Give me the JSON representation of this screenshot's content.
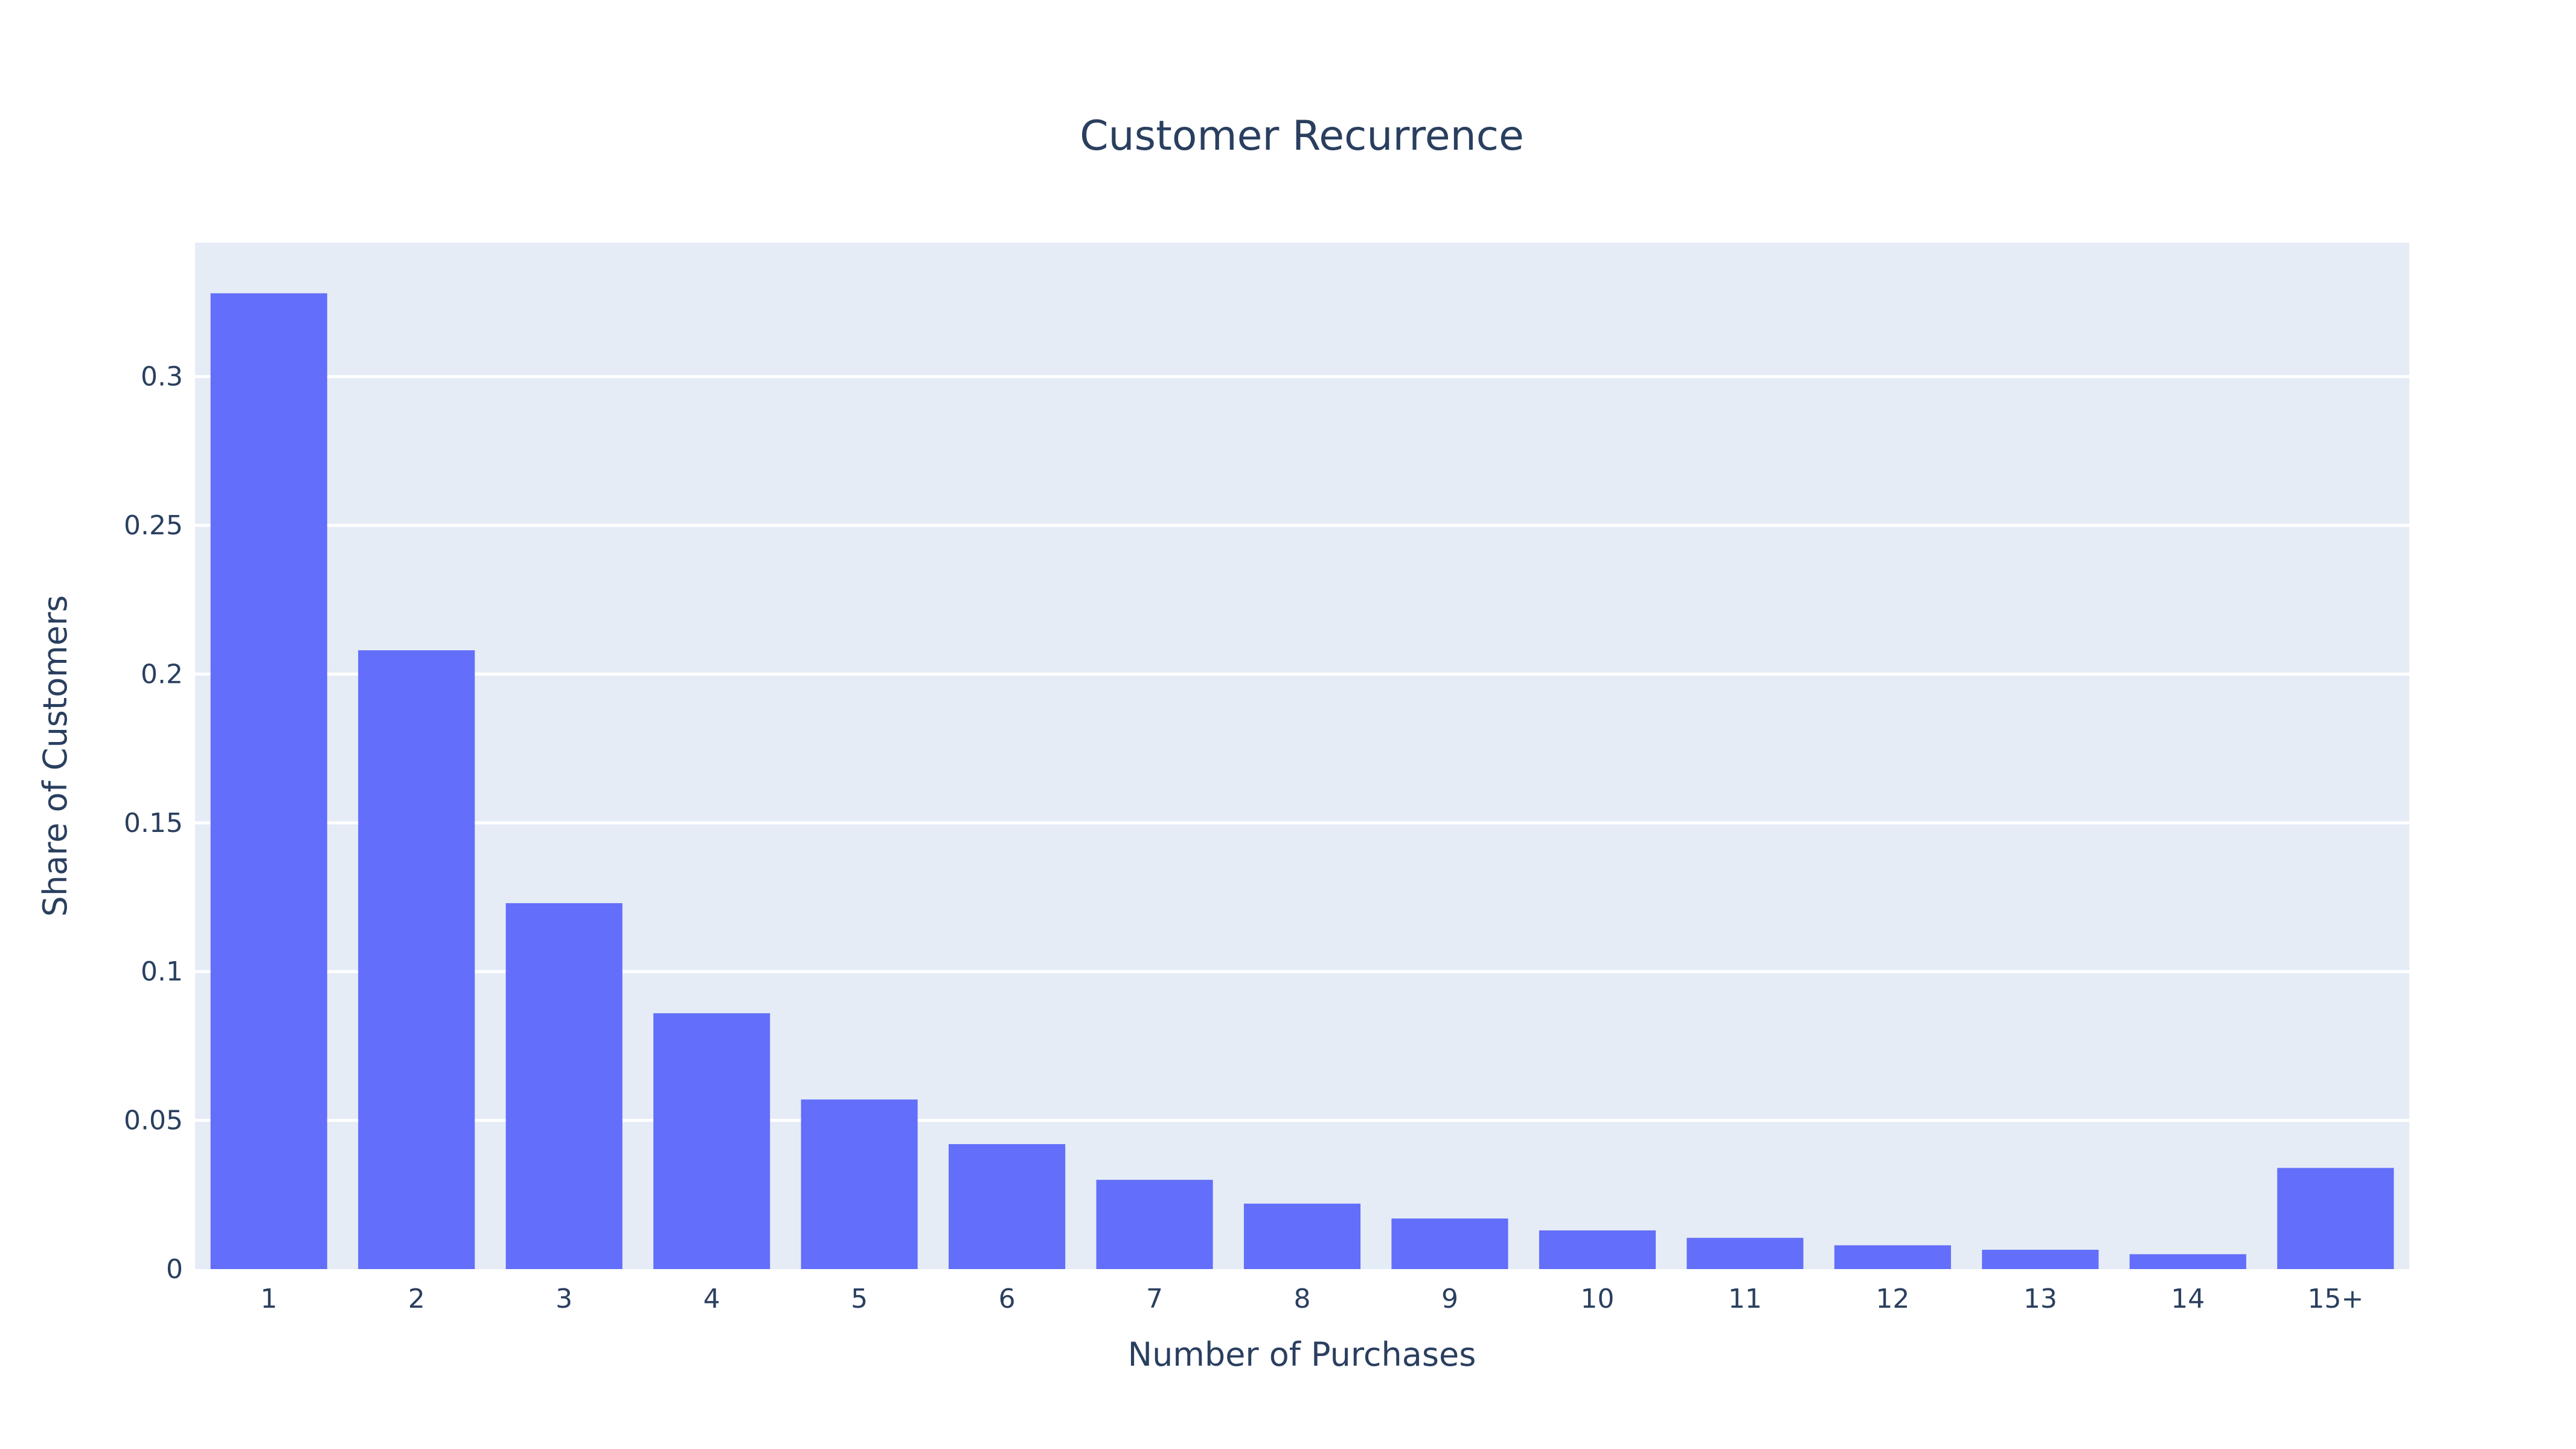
{
  "chart_data": {
    "type": "bar",
    "title": "Customer Recurrence",
    "xlabel": "Number of Purchases",
    "ylabel": "Share of Customers",
    "categories": [
      "1",
      "2",
      "3",
      "4",
      "5",
      "6",
      "7",
      "8",
      "9",
      "10",
      "11",
      "12",
      "13",
      "14",
      "15+"
    ],
    "values": [
      0.328,
      0.208,
      0.123,
      0.086,
      0.057,
      0.042,
      0.03,
      0.022,
      0.017,
      0.013,
      0.0105,
      0.008,
      0.0065,
      0.005,
      0.034
    ],
    "ylim": [
      0,
      0.345
    ],
    "yticks": [
      0,
      0.05,
      0.1,
      0.15,
      0.2,
      0.25,
      0.3
    ],
    "ytick_labels": [
      "0",
      "0.05",
      "0.1",
      "0.15",
      "0.2",
      "0.25",
      "0.3"
    ],
    "grid": true,
    "legend": "none",
    "colors": {
      "bar": "#636efa",
      "plot_background": "#e5ecf6",
      "gridline": "#ffffff",
      "text": "#2a3f5f"
    }
  }
}
